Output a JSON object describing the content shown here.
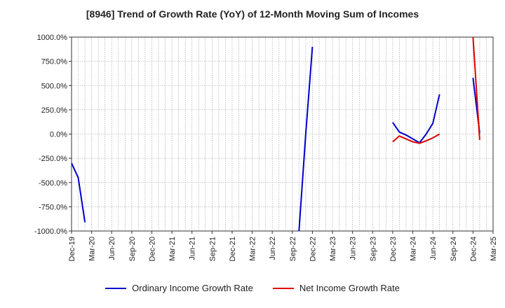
{
  "chart_data": {
    "type": "line",
    "title": "[8946]  Trend of Growth Rate (YoY) of 12-Month Moving Sum of Incomes",
    "xlabel": "",
    "ylabel": "",
    "ylim": [
      -1000,
      1000
    ],
    "y_ticks": [
      1000,
      750,
      500,
      250,
      0,
      -250,
      -500,
      -750,
      -1000
    ],
    "y_tick_labels": [
      "1000.0%",
      "750.0%",
      "500.0%",
      "250.0%",
      "0.0%",
      "-250.0%",
      "-500.0%",
      "-750.0%",
      "-1000.0%"
    ],
    "x_start": "2019-12",
    "x_end": "2025-03",
    "x_tick_labels": [
      "Dec-19",
      "Mar-20",
      "Jun-20",
      "Sep-20",
      "Dec-20",
      "Mar-21",
      "Jun-21",
      "Sep-21",
      "Dec-21",
      "Mar-22",
      "Jun-22",
      "Sep-22",
      "Dec-22",
      "Mar-23",
      "Jun-23",
      "Sep-23",
      "Dec-23",
      "Mar-24",
      "Jun-24",
      "Sep-24",
      "Dec-24",
      "Mar-25"
    ],
    "grid": true,
    "legend_position": "bottom",
    "series": [
      {
        "name": "Ordinary Income Growth Rate",
        "color": "#0000cc",
        "segments": [
          [
            [
              "2019-12",
              -300
            ],
            [
              "2020-01",
              -450
            ],
            [
              "2020-02",
              -910
            ]
          ],
          [
            [
              "2022-10",
              -1000
            ],
            [
              "2022-11",
              0
            ],
            [
              "2022-12",
              900
            ]
          ],
          [
            [
              "2023-12",
              120
            ],
            [
              "2024-01",
              20
            ],
            [
              "2024-02",
              -10
            ],
            [
              "2024-03",
              -50
            ],
            [
              "2024-04",
              -90
            ],
            [
              "2024-05",
              0
            ],
            [
              "2024-06",
              110
            ],
            [
              "2024-07",
              410
            ]
          ],
          [
            [
              "2024-12",
              580
            ],
            [
              "2025-01",
              10
            ]
          ]
        ]
      },
      {
        "name": "Net Income Growth Rate",
        "color": "#dd0000",
        "segments": [
          [
            [
              "2023-12",
              -80
            ],
            [
              "2024-01",
              -20
            ],
            [
              "2024-02",
              -50
            ],
            [
              "2024-03",
              -80
            ],
            [
              "2024-04",
              -95
            ],
            [
              "2024-05",
              -70
            ],
            [
              "2024-06",
              -40
            ],
            [
              "2024-07",
              0
            ]
          ],
          [
            [
              "2024-12",
              1000
            ],
            [
              "2025-01",
              -60
            ]
          ]
        ]
      }
    ]
  }
}
